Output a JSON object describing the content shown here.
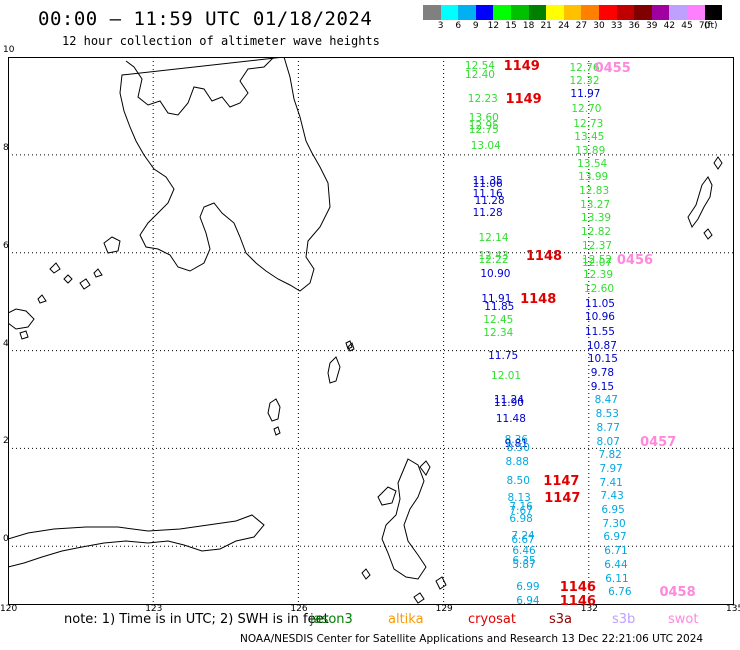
{
  "header": {
    "title": "00:00 – 11:59 UTC 01/18/2024",
    "subtitle": "12 hour collection of altimeter wave heights"
  },
  "legend": {
    "unit": "(ft)",
    "bins": [
      {
        "label": "3",
        "color": "#808080"
      },
      {
        "label": "6",
        "color": "#00ffff"
      },
      {
        "label": "9",
        "color": "#00b0f0"
      },
      {
        "label": "12",
        "color": "#0000ff"
      },
      {
        "label": "15",
        "color": "#00ff00"
      },
      {
        "label": "18",
        "color": "#00c000"
      },
      {
        "label": "21",
        "color": "#008000"
      },
      {
        "label": "24",
        "color": "#ffff00"
      },
      {
        "label": "27",
        "color": "#ffc000"
      },
      {
        "label": "30",
        "color": "#ff8000"
      },
      {
        "label": "33",
        "color": "#ff0000"
      },
      {
        "label": "36",
        "color": "#c00000"
      },
      {
        "label": "39",
        "color": "#800000"
      },
      {
        "label": "42",
        "color": "#a000a0"
      },
      {
        "label": "45",
        "color": "#c0a0ff"
      },
      {
        "label": "70",
        "color": "#ff80ff"
      },
      {
        "label": "",
        "color": "#000000"
      }
    ]
  },
  "axes": {
    "lon_labels": [
      "120",
      "123",
      "126",
      "129",
      "132",
      "135"
    ],
    "lat_labels": [
      "0",
      "2",
      "4",
      "6",
      "8",
      "10"
    ]
  },
  "observations": [
    {
      "value": "12.54",
      "color": "#33dd33",
      "lon": 129.44,
      "lat": 9.8
    },
    {
      "value": "12.40",
      "color": "#33dd33",
      "lon": 129.44,
      "lat": 9.62
    },
    {
      "value": "12.23",
      "color": "#33dd33",
      "lon": 129.5,
      "lat": 9.12
    },
    {
      "value": "13.60",
      "color": "#33dd33",
      "lon": 129.52,
      "lat": 8.74
    },
    {
      "value": "12.95",
      "color": "#33dd33",
      "lon": 129.52,
      "lat": 8.56
    },
    {
      "value": "12.75",
      "color": "#33dd33",
      "lon": 129.52,
      "lat": 8.48
    },
    {
      "value": "13.04",
      "color": "#33dd33",
      "lon": 129.56,
      "lat": 8.16
    },
    {
      "value": "11.35",
      "color": "#0000cc",
      "lon": 129.6,
      "lat": 7.45
    },
    {
      "value": "11.06",
      "color": "#0000cc",
      "lon": 129.6,
      "lat": 7.38
    },
    {
      "value": "11.16",
      "color": "#0000cc",
      "lon": 129.6,
      "lat": 7.18
    },
    {
      "value": "11.28",
      "color": "#0000cc",
      "lon": 129.64,
      "lat": 7.04
    },
    {
      "value": "11.28",
      "color": "#0000cc",
      "lon": 129.6,
      "lat": 6.8
    },
    {
      "value": "12.14",
      "color": "#33dd33",
      "lon": 129.72,
      "lat": 6.28
    },
    {
      "value": "12.43",
      "color": "#33dd33",
      "lon": 129.72,
      "lat": 5.92
    },
    {
      "value": "12.22",
      "color": "#33dd33",
      "lon": 129.72,
      "lat": 5.84
    },
    {
      "value": "10.90",
      "color": "#0000cc",
      "lon": 129.76,
      "lat": 5.55
    },
    {
      "value": "11.91",
      "color": "#0000cc",
      "lon": 129.78,
      "lat": 5.04
    },
    {
      "value": "11.85",
      "color": "#0000cc",
      "lon": 129.84,
      "lat": 4.88
    },
    {
      "value": "12.45",
      "color": "#33dd33",
      "lon": 129.82,
      "lat": 4.6
    },
    {
      "value": "12.34",
      "color": "#33dd33",
      "lon": 129.82,
      "lat": 4.34
    },
    {
      "value": "11.75",
      "color": "#0000cc",
      "lon": 129.92,
      "lat": 3.86
    },
    {
      "value": "12.01",
      "color": "#33dd33",
      "lon": 129.98,
      "lat": 3.45
    },
    {
      "value": "11.24",
      "color": "#0000cc",
      "lon": 130.04,
      "lat": 2.96
    },
    {
      "value": "11.90",
      "color": "#0000cc",
      "lon": 130.04,
      "lat": 2.9
    },
    {
      "value": "11.48",
      "color": "#0000cc",
      "lon": 130.08,
      "lat": 2.58
    },
    {
      "value": "8.36",
      "color": "#00a8e0",
      "lon": 130.26,
      "lat": 2.16
    },
    {
      "value": "9.81",
      "color": "#0000cc",
      "lon": 130.26,
      "lat": 2.08
    },
    {
      "value": "8.50",
      "color": "#00a8e0",
      "lon": 130.3,
      "lat": 1.98
    },
    {
      "value": "8.88",
      "color": "#00a8e0",
      "lon": 130.28,
      "lat": 1.7
    },
    {
      "value": "8.50",
      "color": "#00a8e0",
      "lon": 130.3,
      "lat": 1.32
    },
    {
      "value": "8.13",
      "color": "#00a8e0",
      "lon": 130.32,
      "lat": 0.96
    },
    {
      "value": "7.16",
      "color": "#00a8e0",
      "lon": 130.36,
      "lat": 0.78
    },
    {
      "value": "7.67",
      "color": "#00a8e0",
      "lon": 130.36,
      "lat": 0.7
    },
    {
      "value": "6.98",
      "color": "#00a8e0",
      "lon": 130.36,
      "lat": 0.54
    },
    {
      "value": "7.24",
      "color": "#00a8e0",
      "lon": 130.4,
      "lat": 0.18
    },
    {
      "value": "6.67",
      "color": "#00a8e0",
      "lon": 130.4,
      "lat": 0.1
    },
    {
      "value": "6.46",
      "color": "#00a8e0",
      "lon": 130.42,
      "lat": -0.12
    },
    {
      "value": "6.35",
      "color": "#00a8e0",
      "lon": 130.42,
      "lat": -0.32
    },
    {
      "value": "5.87",
      "color": "#00a8e0",
      "lon": 130.42,
      "lat": -0.4
    },
    {
      "value": "6.99",
      "color": "#00a8e0",
      "lon": 130.5,
      "lat": -0.86
    },
    {
      "value": "6.94",
      "color": "#00a8e0",
      "lon": 130.5,
      "lat": -1.14
    },
    {
      "value": "12.76",
      "color": "#33dd33",
      "lon": 131.6,
      "lat": 9.76
    },
    {
      "value": "12.32",
      "color": "#33dd33",
      "lon": 131.6,
      "lat": 9.48
    },
    {
      "value": "11.97",
      "color": "#0000cc",
      "lon": 131.62,
      "lat": 9.22
    },
    {
      "value": "12.70",
      "color": "#33dd33",
      "lon": 131.64,
      "lat": 8.92
    },
    {
      "value": "12.73",
      "color": "#33dd33",
      "lon": 131.68,
      "lat": 8.62
    },
    {
      "value": "13.45",
      "color": "#33dd33",
      "lon": 131.7,
      "lat": 8.34
    },
    {
      "value": "13.89",
      "color": "#33dd33",
      "lon": 131.72,
      "lat": 8.06
    },
    {
      "value": "13.54",
      "color": "#33dd33",
      "lon": 131.76,
      "lat": 7.8
    },
    {
      "value": "13.99",
      "color": "#33dd33",
      "lon": 131.78,
      "lat": 7.52
    },
    {
      "value": "12.83",
      "color": "#33dd33",
      "lon": 131.8,
      "lat": 7.24
    },
    {
      "value": "13.27",
      "color": "#33dd33",
      "lon": 131.82,
      "lat": 6.96
    },
    {
      "value": "13.39",
      "color": "#33dd33",
      "lon": 131.84,
      "lat": 6.68
    },
    {
      "value": "12.82",
      "color": "#33dd33",
      "lon": 131.84,
      "lat": 6.4
    },
    {
      "value": "12.37",
      "color": "#33dd33",
      "lon": 131.86,
      "lat": 6.12
    },
    {
      "value": "12.52",
      "color": "#33dd33",
      "lon": 131.86,
      "lat": 5.84
    },
    {
      "value": "12.07",
      "color": "#33dd33",
      "lon": 131.86,
      "lat": 5.76
    },
    {
      "value": "12.39",
      "color": "#33dd33",
      "lon": 131.88,
      "lat": 5.52
    },
    {
      "value": "12.60",
      "color": "#33dd33",
      "lon": 131.9,
      "lat": 5.24
    },
    {
      "value": "11.05",
      "color": "#0000cc",
      "lon": 131.92,
      "lat": 4.94
    },
    {
      "value": "10.96",
      "color": "#0000cc",
      "lon": 131.92,
      "lat": 4.66
    },
    {
      "value": "11.55",
      "color": "#0000cc",
      "lon": 131.92,
      "lat": 4.36
    },
    {
      "value": "10.87",
      "color": "#0000cc",
      "lon": 131.96,
      "lat": 4.08
    },
    {
      "value": "10.15",
      "color": "#0000cc",
      "lon": 131.98,
      "lat": 3.8
    },
    {
      "value": "9.78",
      "color": "#0000cc",
      "lon": 132.04,
      "lat": 3.52
    },
    {
      "value": "9.15",
      "color": "#0000cc",
      "lon": 132.04,
      "lat": 3.24
    },
    {
      "value": "8.47",
      "color": "#00a8e0",
      "lon": 132.12,
      "lat": 2.96
    },
    {
      "value": "8.53",
      "color": "#00a8e0",
      "lon": 132.14,
      "lat": 2.68
    },
    {
      "value": "8.77",
      "color": "#00a8e0",
      "lon": 132.16,
      "lat": 2.4
    },
    {
      "value": "8.07",
      "color": "#00a8e0",
      "lon": 132.16,
      "lat": 2.12
    },
    {
      "value": "7.82",
      "color": "#00a8e0",
      "lon": 132.2,
      "lat": 1.84
    },
    {
      "value": "7.97",
      "color": "#00a8e0",
      "lon": 132.22,
      "lat": 1.56
    },
    {
      "value": "7.41",
      "color": "#00a8e0",
      "lon": 132.22,
      "lat": 1.28
    },
    {
      "value": "7.43",
      "color": "#00a8e0",
      "lon": 132.24,
      "lat": 1.0
    },
    {
      "value": "6.95",
      "color": "#00a8e0",
      "lon": 132.26,
      "lat": 0.72
    },
    {
      "value": "7.30",
      "color": "#00a8e0",
      "lon": 132.28,
      "lat": 0.44
    },
    {
      "value": "6.97",
      "color": "#00a8e0",
      "lon": 132.3,
      "lat": 0.16
    },
    {
      "value": "6.71",
      "color": "#00a8e0",
      "lon": 132.32,
      "lat": -0.12
    },
    {
      "value": "6.44",
      "color": "#00a8e0",
      "lon": 132.32,
      "lat": -0.4
    },
    {
      "value": "6.11",
      "color": "#00a8e0",
      "lon": 132.34,
      "lat": -0.68
    },
    {
      "value": "6.76",
      "color": "#00a8e0",
      "lon": 132.4,
      "lat": -0.96
    }
  ],
  "pass_times": [
    {
      "time": "1149",
      "color": "#e00000",
      "lon": 130.24,
      "lat": 9.8
    },
    {
      "time": "1149",
      "color": "#e00000",
      "lon": 130.28,
      "lat": 9.12
    },
    {
      "time": "1148",
      "color": "#e00000",
      "lon": 130.7,
      "lat": 5.92
    },
    {
      "time": "1148",
      "color": "#e00000",
      "lon": 130.58,
      "lat": 5.04
    },
    {
      "time": "1147",
      "color": "#e00000",
      "lon": 131.06,
      "lat": 1.32
    },
    {
      "time": "1147",
      "color": "#e00000",
      "lon": 131.08,
      "lat": 0.96
    },
    {
      "time": "1146",
      "color": "#e00000",
      "lon": 131.4,
      "lat": -0.86
    },
    {
      "time": "1146",
      "color": "#e00000",
      "lon": 131.4,
      "lat": -1.14
    },
    {
      "time": "0455",
      "color": "#ff88dd",
      "lon": 132.12,
      "lat": 9.76
    },
    {
      "time": "0456",
      "color": "#ff88dd",
      "lon": 132.58,
      "lat": 5.84
    },
    {
      "time": "0457",
      "color": "#ff88dd",
      "lon": 133.06,
      "lat": 2.12
    },
    {
      "time": "0458",
      "color": "#ff88dd",
      "lon": 133.46,
      "lat": -0.96
    }
  ],
  "footer": {
    "note": "note: 1) Time is in UTC; 2) SWH is in feet",
    "missions": [
      {
        "name": "jason3",
        "color": "#008000"
      },
      {
        "name": "altika",
        "color": "#ff9900"
      },
      {
        "name": "cryosat",
        "color": "#e00000"
      },
      {
        "name": "s3a",
        "color": "#900000"
      },
      {
        "name": "s3b",
        "color": "#c0a0ff"
      },
      {
        "name": "swot",
        "color": "#ff88dd"
      }
    ],
    "credit": "NOAA/NESDIS Center for Satellite Applications and Research   13 Dec 22:21:06 UTC 2024"
  }
}
